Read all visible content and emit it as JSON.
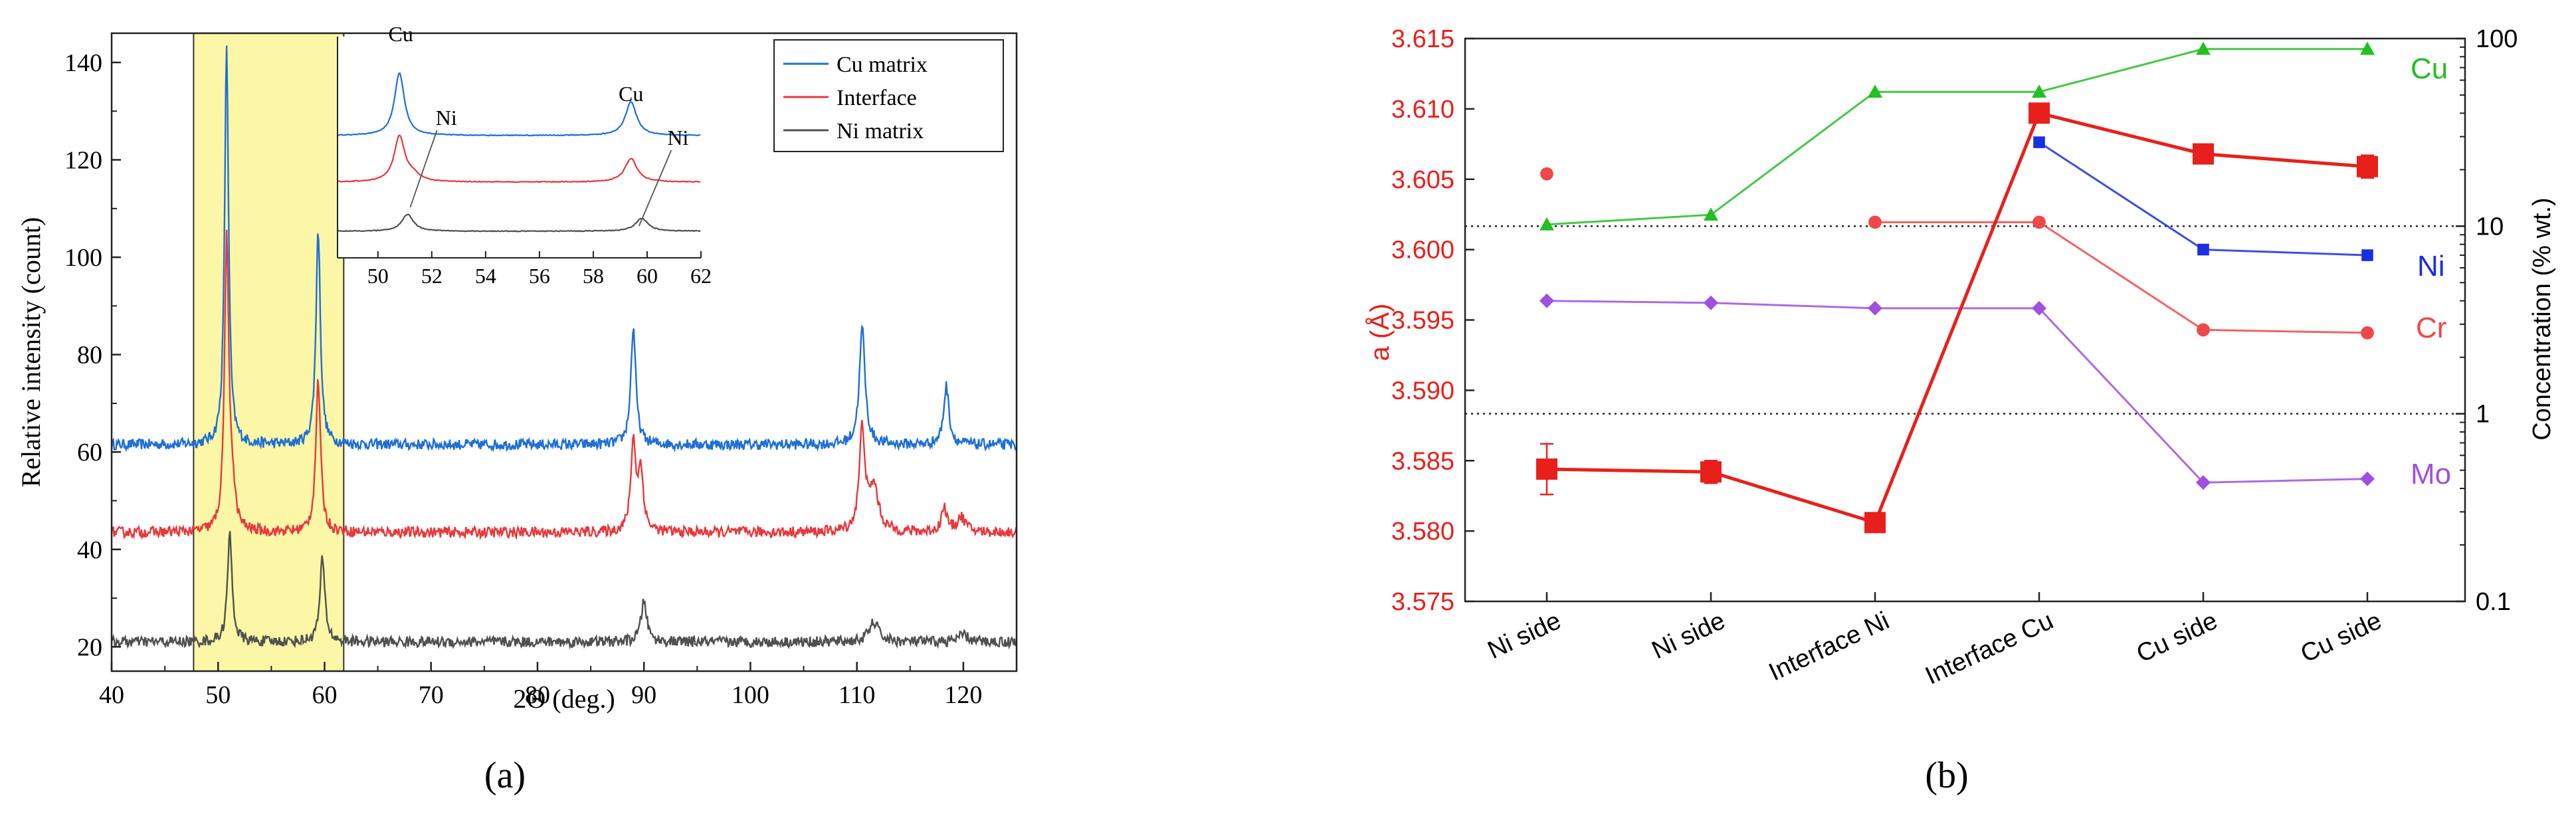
{
  "panel_labels": {
    "a": "(a)",
    "b": "(b)"
  },
  "chart_data": [
    {
      "type": "line",
      "id": "xrd",
      "xlabel": "2Θ (deg.)",
      "ylabel": "Relative intensity (count)",
      "xlim": [
        40,
        125
      ],
      "ylim": [
        15,
        146
      ],
      "xticks": [
        40,
        50,
        60,
        70,
        80,
        90,
        100,
        110,
        120
      ],
      "yticks": [
        20,
        40,
        60,
        80,
        100,
        120,
        140
      ],
      "highlight_range": [
        47.7,
        61.8
      ],
      "legend_position": "top-right",
      "series": [
        {
          "name": "Cu matrix",
          "color": "#1f6fd6",
          "baseline": 61.5,
          "peaks": [
            {
              "x": 50.8,
              "h": 82,
              "w": 0.22
            },
            {
              "x": 59.4,
              "h": 44,
              "w": 0.25
            },
            {
              "x": 89.0,
              "h": 24,
              "w": 0.28
            },
            {
              "x": 110.5,
              "h": 24,
              "w": 0.32
            },
            {
              "x": 118.4,
              "h": 12,
              "w": 0.3
            }
          ]
        },
        {
          "name": "Interface",
          "color": "#e8383c",
          "baseline": 43.5,
          "peaks": [
            {
              "x": 50.8,
              "h": 59,
              "w": 0.24
            },
            {
              "x": 51.3,
              "h": 8,
              "w": 0.3
            },
            {
              "x": 59.4,
              "h": 31,
              "w": 0.27
            },
            {
              "x": 89.0,
              "h": 18,
              "w": 0.28
            },
            {
              "x": 89.7,
              "h": 12,
              "w": 0.3
            },
            {
              "x": 110.5,
              "h": 21,
              "w": 0.32
            },
            {
              "x": 111.6,
              "h": 9,
              "w": 0.5
            },
            {
              "x": 118.2,
              "h": 5,
              "w": 0.3
            },
            {
              "x": 119.8,
              "h": 3,
              "w": 0.5
            }
          ]
        },
        {
          "name": "Ni matrix",
          "color": "#505050",
          "baseline": 21,
          "peaks": [
            {
              "x": 51.1,
              "h": 22,
              "w": 0.26
            },
            {
              "x": 59.8,
              "h": 17,
              "w": 0.28
            },
            {
              "x": 90.0,
              "h": 8.5,
              "w": 0.32
            },
            {
              "x": 111.6,
              "h": 4,
              "w": 0.55
            },
            {
              "x": 120.0,
              "h": 1.5,
              "w": 0.5
            }
          ]
        }
      ],
      "inset": {
        "xlim": [
          48.5,
          62
        ],
        "xticks": [
          50,
          52,
          54,
          56,
          58,
          60,
          62
        ],
        "annotations": [
          "Cu",
          "Ni",
          "Cu",
          "Ni"
        ]
      }
    },
    {
      "type": "line",
      "id": "lattice",
      "categories": [
        "Ni side",
        "Ni side",
        "Interface Ni",
        "Interface Cu",
        "Cu side",
        "Cu side"
      ],
      "ylabel": "a (Å)",
      "ylim": [
        3.575,
        3.615
      ],
      "yticks": [
        "3.575",
        "3.580",
        "3.585",
        "3.590",
        "3.595",
        "3.600",
        "3.605",
        "3.610",
        "3.615"
      ],
      "y2label": "Concentration (% wt.)",
      "y2lim": [
        0.1,
        100
      ],
      "y2scale": "log",
      "y2ticks": [
        "0.1",
        "1",
        "10",
        "100"
      ],
      "reference_lines_y2": [
        1,
        10
      ],
      "lattice_parameter": {
        "color": "#e8201c",
        "values": [
          3.5844,
          3.5842,
          3.5806,
          3.6097,
          3.6068,
          3.6059
        ],
        "errors": [
          0.0018,
          0.0008,
          0.0006,
          0.0005,
          0.0004,
          0.0008
        ]
      },
      "series": [
        {
          "name": "Cu",
          "color": "#22c022",
          "marker": "triangle",
          "values": [
            null,
            11.5,
            52,
            52,
            88,
            88
          ],
          "side_values": [
            10.2,
            11.5,
            52,
            52,
            88,
            88
          ]
        },
        {
          "name": "Ni",
          "color": "#1a2fe0",
          "marker": "square",
          "values": [
            null,
            null,
            null,
            28,
            7.5,
            7.0
          ]
        },
        {
          "name": "Cr",
          "color": "#f04848",
          "marker": "circle",
          "values": [
            19,
            null,
            10.5,
            10.5,
            2.8,
            2.7
          ]
        },
        {
          "name": "Mo",
          "color": "#a050e0",
          "marker": "diamond",
          "values": [
            4.0,
            3.9,
            3.65,
            3.65,
            0.43,
            0.45
          ]
        }
      ],
      "right_labels": [
        "Cu",
        "Ni",
        "Cr",
        "Mo"
      ]
    }
  ]
}
